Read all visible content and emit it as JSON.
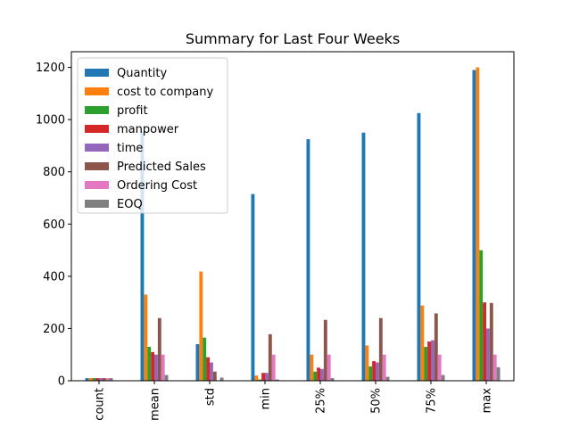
{
  "chart_data": {
    "type": "bar",
    "title": "Summary for Last Four Weeks",
    "xlabel": "",
    "ylabel": "",
    "categories": [
      "count",
      "mean",
      "std",
      "min",
      "25%",
      "50%",
      "75%",
      "max"
    ],
    "ylim": [
      0,
      1260
    ],
    "yticks": [
      0,
      200,
      400,
      600,
      800,
      1000,
      1200
    ],
    "legend_position": "top-left",
    "grid": false,
    "series": [
      {
        "name": "Quantity",
        "color": "#1f77b4",
        "values": [
          10,
          955,
          140,
          715,
          925,
          950,
          1025,
          1190
        ]
      },
      {
        "name": "cost to company",
        "color": "#ff7f0e",
        "values": [
          10,
          330,
          418,
          20,
          100,
          135,
          288,
          1200
        ]
      },
      {
        "name": "profit",
        "color": "#2ca02c",
        "values": [
          10,
          130,
          165,
          5,
          35,
          55,
          130,
          500
        ]
      },
      {
        "name": "manpower",
        "color": "#d62728",
        "values": [
          10,
          110,
          90,
          30,
          50,
          75,
          150,
          300
        ]
      },
      {
        "name": "time",
        "color": "#9467bd",
        "values": [
          10,
          100,
          70,
          30,
          45,
          70,
          155,
          200
        ]
      },
      {
        "name": "Predicted Sales",
        "color": "#8c564b",
        "values": [
          10,
          240,
          35,
          178,
          233,
          240,
          258,
          298
        ]
      },
      {
        "name": "Ordering Cost",
        "color": "#e377c2",
        "values": [
          10,
          100,
          0,
          100,
          100,
          100,
          100,
          100
        ]
      },
      {
        "name": "EOQ",
        "color": "#7f7f7f",
        "values": [
          10,
          22,
          12,
          5,
          10,
          15,
          22,
          52
        ]
      }
    ]
  }
}
